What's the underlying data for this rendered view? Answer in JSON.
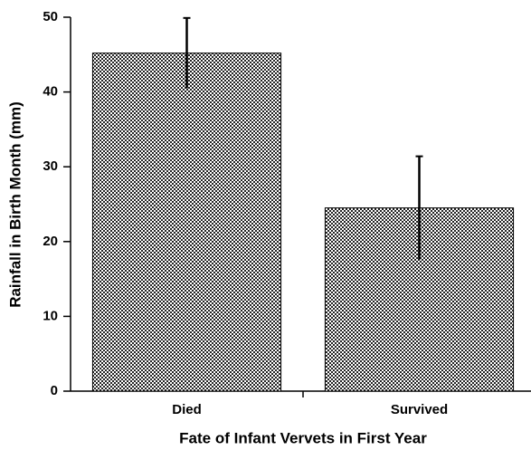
{
  "chart_data": {
    "type": "bar",
    "x_label": "Fate of Infant Vervets in First Year",
    "y_label": "Rainfall in Birth Month (mm)",
    "categories": [
      "Died",
      "Survived"
    ],
    "values": [
      45.2,
      24.5
    ],
    "errors": [
      4.7,
      6.9
    ],
    "color": "#777777",
    "ylim": [
      0,
      50
    ],
    "yticks": [
      0,
      10,
      20,
      30,
      40,
      50
    ],
    "grid": false
  }
}
